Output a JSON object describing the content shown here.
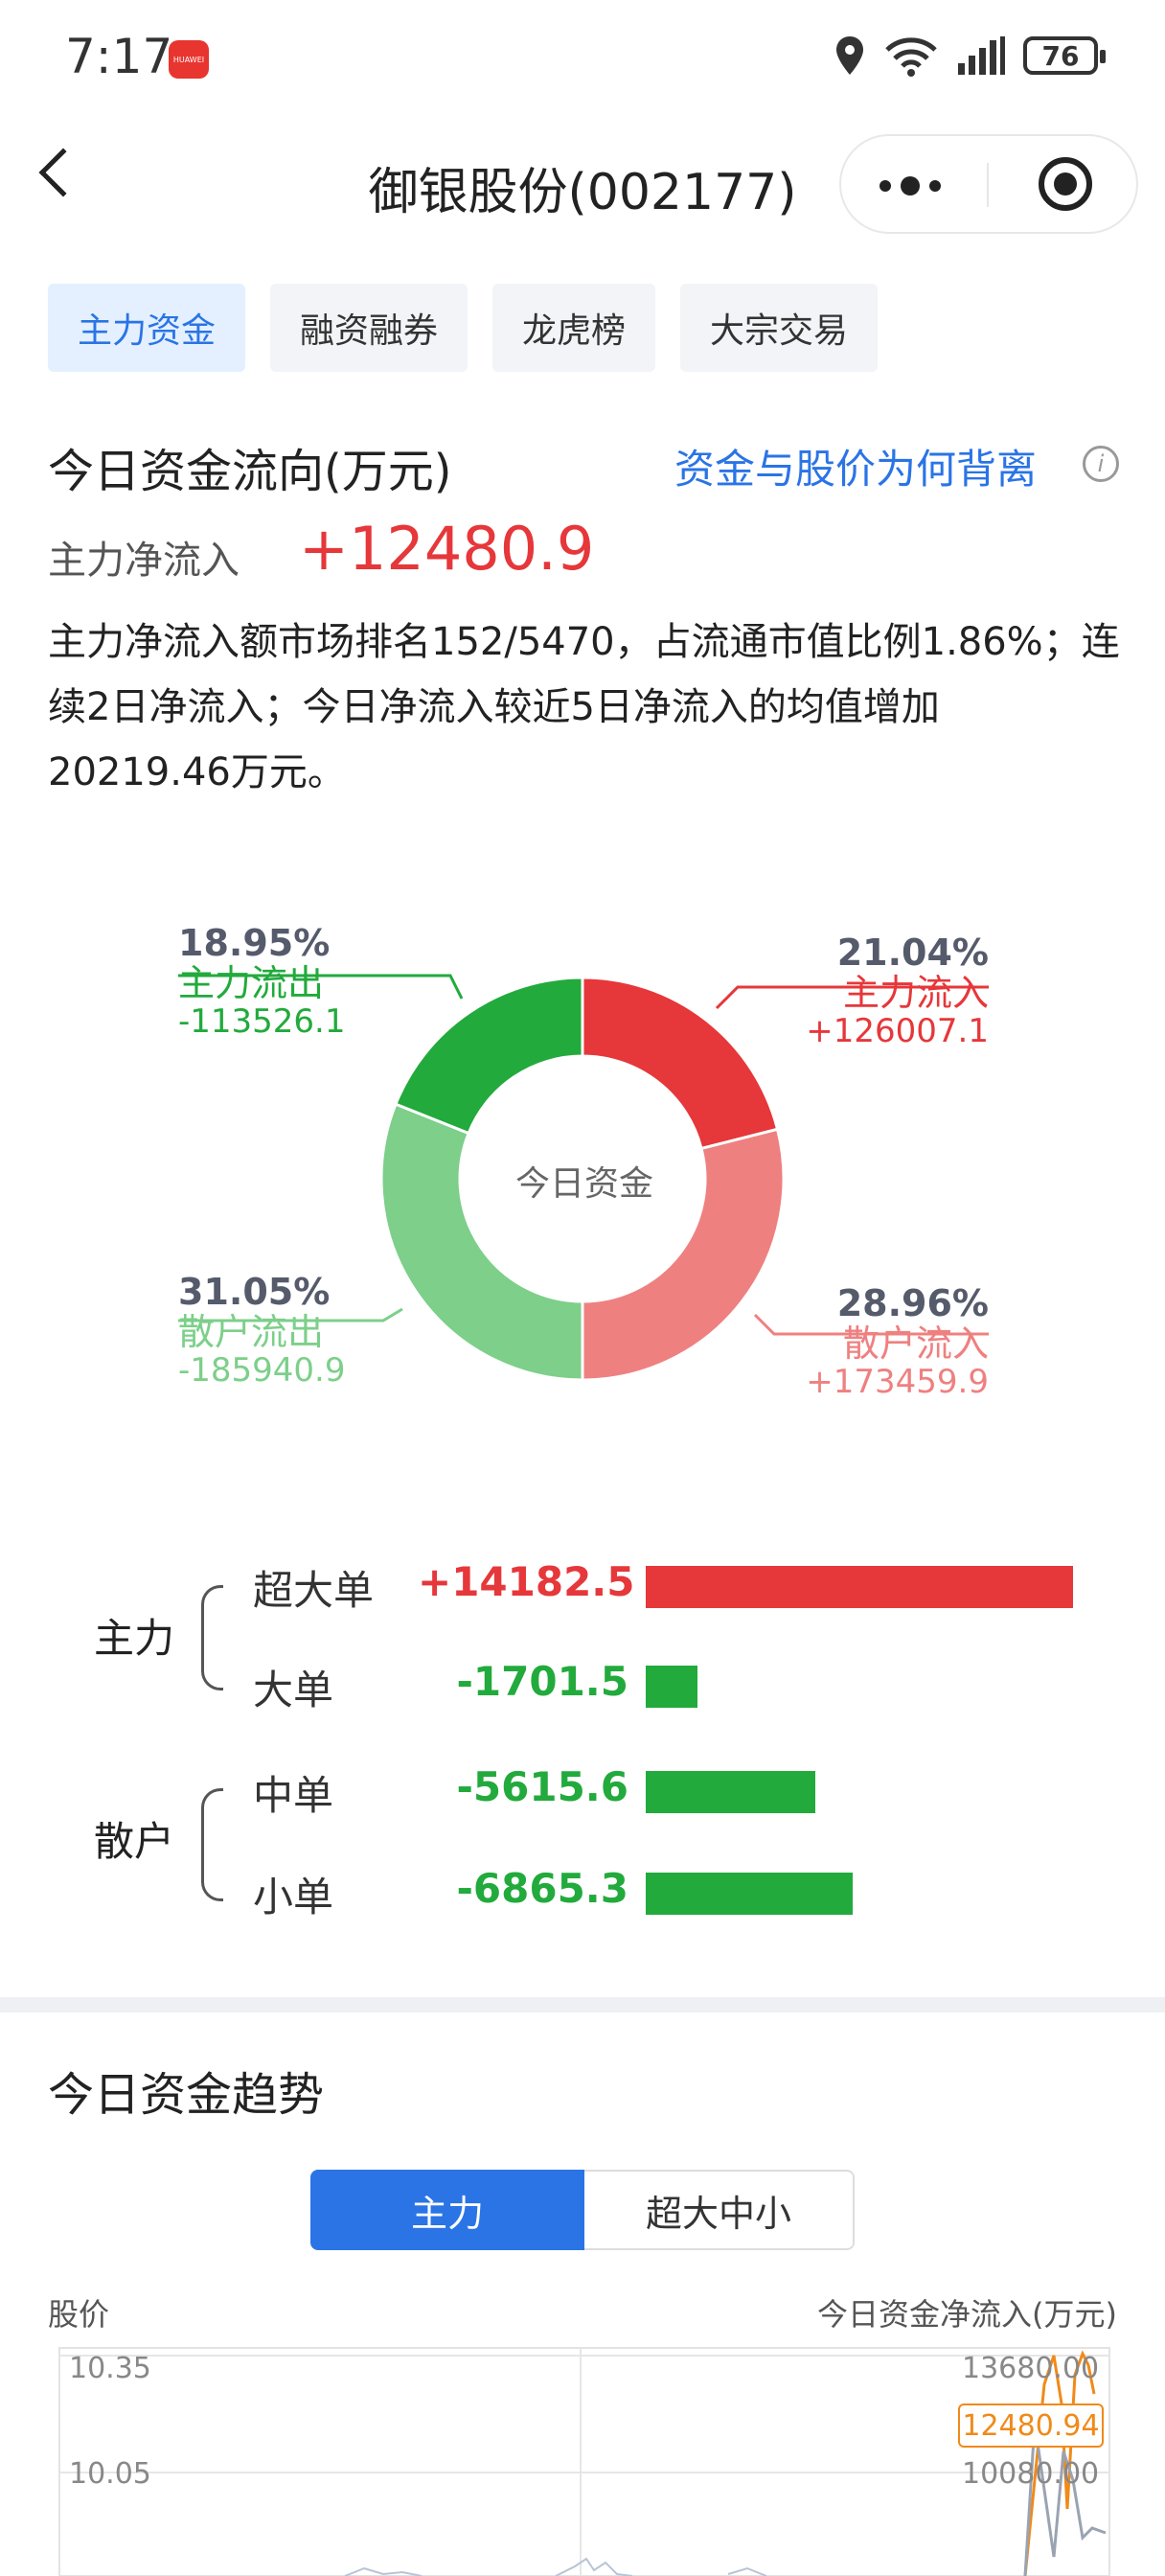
{
  "status_bar": {
    "time": "7:17",
    "battery": "76",
    "app_badge": "HUAWEI"
  },
  "header": {
    "title": "御银股份(002177)"
  },
  "tabs": [
    {
      "label": "主力资金",
      "active": true
    },
    {
      "label": "融资融券",
      "active": false
    },
    {
      "label": "龙虎榜",
      "active": false
    },
    {
      "label": "大宗交易",
      "active": false
    }
  ],
  "flow": {
    "title": "今日资金流向(万元)",
    "link": "资金与股价为何背离",
    "net_label": "主力净流入",
    "net_value": "+12480.9",
    "description": "主力净流入额市场排名152/5470，占流通市值比例1.86%；连续2日净流入；今日净流入较近5日净流入的均值增加20219.46万元。"
  },
  "donut": {
    "center": "今日资金",
    "segments": [
      {
        "name": "主力流入",
        "pct": "21.04%",
        "value": "+126007.1",
        "share": 21.04,
        "color": "#e6373a",
        "label_color": "#e6373a"
      },
      {
        "name": "散户流入",
        "pct": "28.96%",
        "value": "+173459.9",
        "share": 28.96,
        "color": "#ef8080",
        "label_color": "#ef8080"
      },
      {
        "name": "散户流出",
        "pct": "31.05%",
        "value": "-185940.9",
        "share": 31.05,
        "color": "#7dcf8a",
        "label_color": "#7dcf8a"
      },
      {
        "name": "主力流出",
        "pct": "18.95%",
        "value": "-113526.1",
        "share": 18.95,
        "color": "#22aa3c",
        "label_color": "#22aa3c"
      }
    ]
  },
  "orders": {
    "groups": [
      {
        "label": "主力",
        "rows": [
          {
            "label": "超大单",
            "value": "+14182.5",
            "amount": 14182.5
          },
          {
            "label": "大单",
            "value": "-1701.5",
            "amount": -1701.5
          }
        ]
      },
      {
        "label": "散户",
        "rows": [
          {
            "label": "中单",
            "value": "-5615.6",
            "amount": -5615.6
          },
          {
            "label": "小单",
            "value": "-6865.3",
            "amount": -6865.3
          }
        ]
      }
    ],
    "max_abs": 14182.5,
    "pos_color": "#e6373a",
    "neg_color": "#22aa3c"
  },
  "trend": {
    "title": "今日资金趋势",
    "segments": [
      "主力",
      "超大中小"
    ],
    "left_axis_title": "股价",
    "right_axis_title": "今日资金净流入(万元)",
    "left_ticks": [
      "10.35",
      "10.05"
    ],
    "right_ticks": [
      "13680.00",
      "10080.00"
    ],
    "current": "12480.94"
  }
}
